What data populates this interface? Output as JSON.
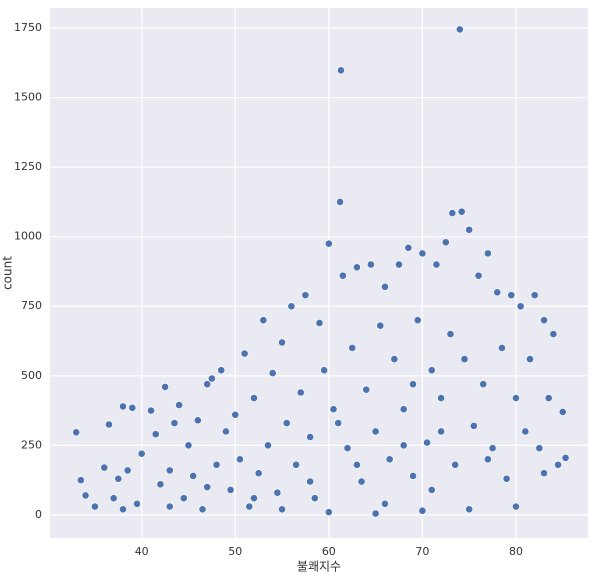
{
  "chart_data": {
    "type": "scatter",
    "x_label": "불쾌지수",
    "y_label": "count",
    "color": "#4c72b0",
    "grid": true,
    "xlim": [
      30.2,
      87.7
    ],
    "ylim": [
      -83,
      1822
    ],
    "xticks": [
      40,
      50,
      60,
      70,
      80
    ],
    "yticks": [
      0,
      250,
      500,
      750,
      1000,
      1250,
      1500,
      1750
    ],
    "x": [
      33,
      33.5,
      34,
      35,
      36,
      36.5,
      37,
      37.5,
      38,
      38.5,
      39,
      39.5,
      40,
      41,
      41.5,
      42,
      42.5,
      43,
      43.5,
      44,
      44.5,
      45,
      45.5,
      46,
      46.5,
      47,
      47.5,
      48,
      48.5,
      49,
      49.5,
      50,
      50.5,
      51,
      51.5,
      52,
      52.5,
      53,
      53.5,
      54,
      54.5,
      55,
      55.5,
      56,
      56.5,
      57,
      57.5,
      58,
      58.5,
      59,
      59.5,
      60,
      60.5,
      61.2,
      61.3,
      61.5,
      62,
      62.5,
      63,
      63.5,
      64,
      64.5,
      65,
      65.5,
      66,
      66.5,
      67,
      67.5,
      68,
      68.5,
      69,
      69.5,
      70,
      70.5,
      71,
      71.5,
      72,
      72.5,
      73,
      73.2,
      73.5,
      74,
      74.2,
      74.5,
      75,
      75.5,
      76,
      76.5,
      77,
      77.5,
      78,
      78.5,
      79,
      79.5,
      80,
      80.5,
      81,
      81.5,
      82,
      82.5,
      83,
      83.5,
      84,
      84.5,
      85,
      85.3,
      55,
      60,
      65,
      70,
      75,
      80,
      58,
      63,
      68,
      72,
      77,
      83,
      66,
      71,
      52,
      47,
      43,
      38,
      61,
      69
    ],
    "y": [
      297,
      125,
      70,
      30,
      170,
      325,
      60,
      130,
      390,
      160,
      385,
      40,
      220,
      375,
      290,
      110,
      460,
      160,
      330,
      395,
      60,
      250,
      140,
      340,
      20,
      470,
      490,
      180,
      520,
      300,
      90,
      360,
      200,
      580,
      30,
      420,
      150,
      700,
      250,
      510,
      80,
      620,
      330,
      750,
      180,
      440,
      790,
      280,
      60,
      690,
      520,
      975,
      380,
      1125,
      1598,
      860,
      240,
      600,
      890,
      120,
      450,
      900,
      300,
      680,
      820,
      200,
      560,
      900,
      380,
      960,
      140,
      700,
      940,
      260,
      520,
      900,
      420,
      980,
      650,
      1085,
      180,
      1745,
      1090,
      560,
      1025,
      320,
      860,
      470,
      940,
      240,
      800,
      600,
      130,
      790,
      420,
      750,
      300,
      560,
      790,
      240,
      700,
      420,
      650,
      180,
      370,
      205,
      20,
      10,
      5,
      15,
      20,
      30,
      120,
      180,
      250,
      300,
      200,
      150,
      40,
      90,
      60,
      100,
      30,
      20,
      330,
      470
    ]
  }
}
